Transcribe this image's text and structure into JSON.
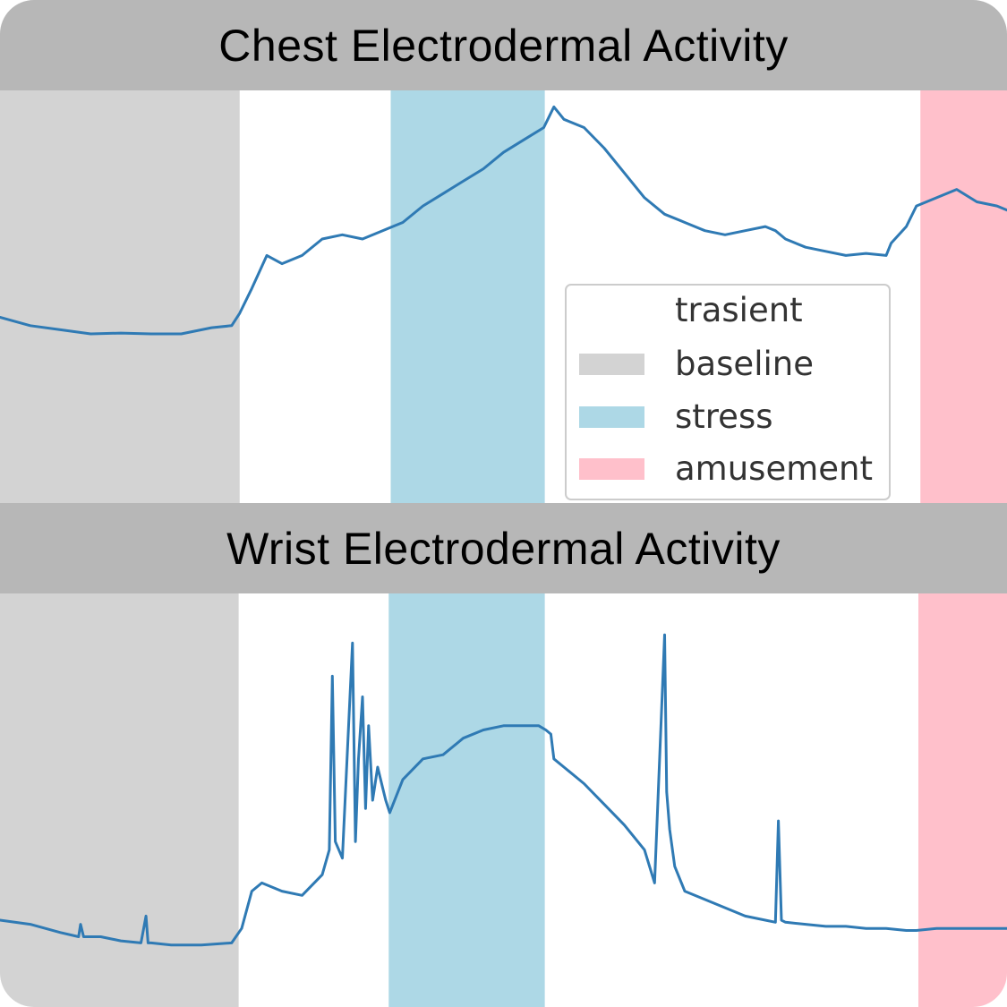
{
  "colors": {
    "line": "#2f7ab4",
    "baseline": "#d3d3d3",
    "stress": "#add8e6",
    "amusement": "#ffc0cb",
    "title_bar": "#b7b7b7"
  },
  "legend": {
    "items": [
      {
        "label": "trasient",
        "key": "trasient"
      },
      {
        "label": "baseline",
        "key": "baseline"
      },
      {
        "label": "stress",
        "key": "stress"
      },
      {
        "label": "amusement",
        "key": "amusement"
      }
    ]
  },
  "chart_data": [
    {
      "type": "line",
      "title": "Chest Electrodermal Activity",
      "xlabel": "",
      "ylabel": "",
      "xlim": [
        0,
        100
      ],
      "ylim": [
        0,
        100
      ],
      "grid": false,
      "legend_position": "lower-right",
      "regions": [
        {
          "label": "baseline",
          "start": 0,
          "end": 23.8
        },
        {
          "label": "stress",
          "start": 38.8,
          "end": 54.1
        },
        {
          "label": "amusement",
          "start": 91.4,
          "end": 100
        }
      ],
      "series": [
        {
          "x": [
            0,
            3,
            6,
            9,
            12,
            15,
            18,
            21,
            23,
            23.8,
            25,
            26.5,
            28,
            30,
            32,
            34,
            36,
            38,
            40,
            42,
            44,
            46,
            48,
            50,
            52,
            54,
            55,
            56,
            58,
            60,
            62,
            64,
            66,
            68,
            70,
            72,
            74,
            76,
            77,
            78,
            80,
            82,
            84,
            86,
            88,
            88.5,
            90,
            91,
            93,
            95,
            97,
            99,
            100
          ],
          "y": [
            45,
            43,
            42,
            41,
            41.2,
            41,
            41,
            42.5,
            43,
            46,
            52,
            60,
            58,
            60,
            64,
            65,
            64,
            66,
            68,
            72,
            75,
            78,
            81,
            85,
            88,
            91,
            96,
            93,
            91,
            86,
            80,
            74,
            70,
            68,
            66,
            65,
            66,
            67,
            66,
            64,
            62,
            61,
            60,
            60.5,
            60,
            63,
            67,
            72,
            74,
            76,
            73,
            72,
            71
          ]
        }
      ]
    },
    {
      "type": "line",
      "title": "Wrist Electrodermal Activity",
      "xlabel": "",
      "ylabel": "",
      "xlim": [
        0,
        100
      ],
      "ylim": [
        0,
        100
      ],
      "grid": false,
      "regions": [
        {
          "label": "baseline",
          "start": 0,
          "end": 23.7
        },
        {
          "label": "stress",
          "start": 38.6,
          "end": 54.1
        },
        {
          "label": "amusement",
          "start": 91.2,
          "end": 100
        }
      ],
      "series": [
        {
          "x": [
            0,
            3,
            6,
            7.8,
            8,
            8.3,
            10,
            12,
            14,
            14.5,
            14.7,
            15,
            17,
            20,
            23,
            24,
            25,
            26,
            28,
            30,
            32,
            32.7,
            33,
            33.3,
            34,
            35,
            35.3,
            35.6,
            36,
            36.3,
            36.6,
            37,
            37.5,
            38,
            38.3,
            38.7,
            40,
            42,
            44,
            46,
            48,
            50,
            52,
            53.5,
            54.2,
            54.7,
            55,
            56,
            58,
            60,
            62,
            64,
            65,
            66,
            66.2,
            66.5,
            67,
            68,
            70,
            72,
            74,
            76,
            77,
            77.3,
            77.6,
            78,
            80,
            82,
            84,
            86,
            88,
            90,
            91,
            93,
            95,
            97,
            100
          ],
          "y": [
            21,
            20,
            18,
            17,
            20,
            17,
            17,
            16,
            15.5,
            22,
            15.5,
            15.5,
            15,
            15,
            15.5,
            19,
            28,
            30,
            28,
            27,
            32,
            38,
            80,
            40,
            36,
            88,
            40,
            60,
            75,
            48,
            68,
            50,
            58,
            53,
            50,
            47,
            55,
            60,
            61,
            65,
            67,
            68,
            68,
            68,
            67,
            66,
            60,
            58,
            54,
            49,
            44,
            38,
            30,
            90,
            52,
            43,
            34,
            28,
            26,
            24,
            22,
            21,
            20.5,
            45,
            21,
            20.5,
            20,
            19.5,
            19.5,
            19,
            19,
            18.5,
            18.5,
            19,
            19,
            19,
            19
          ]
        }
      ]
    }
  ]
}
